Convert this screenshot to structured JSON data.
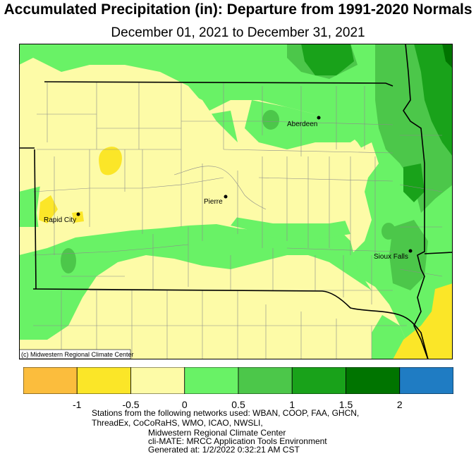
{
  "header": {
    "title": "Accumulated Precipitation (in): Departure from 1991-2020 Normals",
    "subtitle": "December 01, 2021 to December 31, 2021"
  },
  "map": {
    "copyright": "(c) Midwestern Regional Climate Center",
    "cities": [
      {
        "name": "Aberdeen"
      },
      {
        "name": "Pierre"
      },
      {
        "name": "Rapid City"
      },
      {
        "name": "Sioux Falls"
      }
    ]
  },
  "legend": {
    "ticks": [
      "-1",
      "-0.5",
      "0",
      "0.5",
      "1",
      "1.5",
      "2"
    ],
    "colors": [
      "#fbbd3d",
      "#fbe628",
      "#fdfba7",
      "#69f266",
      "#4cc74a",
      "#19a21a",
      "#007400",
      "#1f7cc3"
    ]
  },
  "footer": {
    "line1": "Stations from the following networks used: WBAN, COOP, FAA, GHCN,",
    "line2": "ThreadEx, CoCoRaHS, WMO, ICAO, NWSLI,",
    "line3": "Midwestern Regional Climate Center",
    "line4": "cli-MATE: MRCC Application Tools Environment",
    "line5": "Generated at: 1/2/2022 0:32:21 AM CST"
  }
}
